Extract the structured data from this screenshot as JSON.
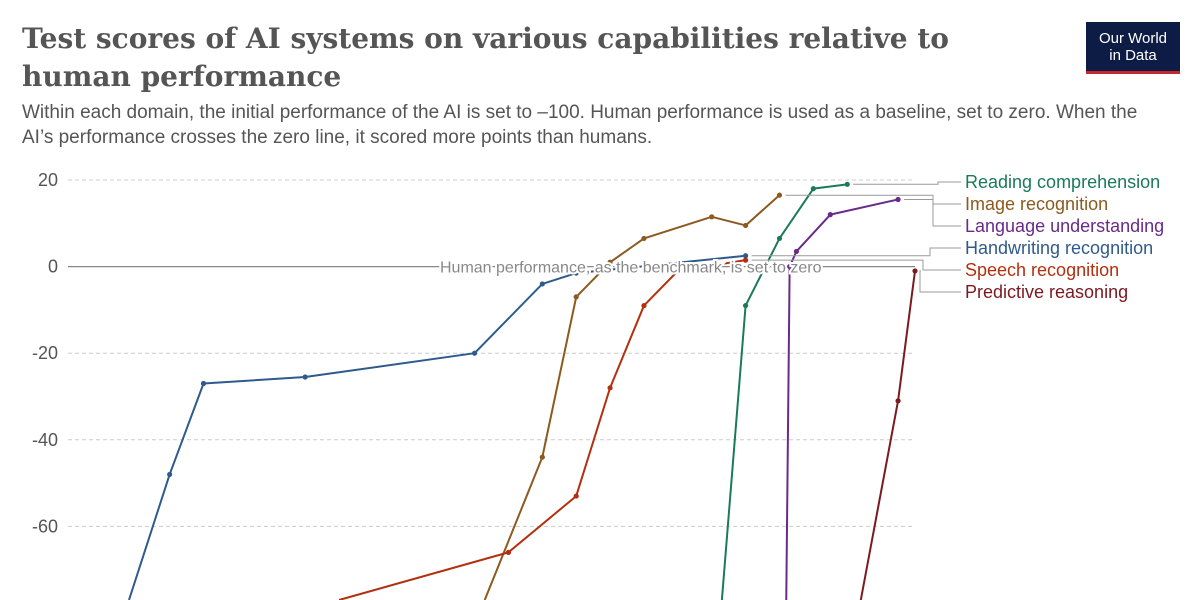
{
  "title": "Test scores of AI systems on various capabilities relative to human performance",
  "subtitle": "Within each domain, the initial performance of the AI is set to –100. Human performance is used as a baseline, set to zero. When the AI’s performance crosses the zero line, it scored more points than humans.",
  "logo": {
    "line1": "Our World",
    "line2": "in Data"
  },
  "colors": {
    "reading": "#1a7a5a",
    "image": "#8c5a1e",
    "language": "#6a2a8a",
    "handwriting": "#2f5a8c",
    "speech": "#b2300f",
    "predictive": "#7a1a20",
    "grid": "#cccccc",
    "text": "#555555"
  },
  "chart_data": {
    "type": "line",
    "title": "Test scores of AI systems on various capabilities relative to human performance",
    "xlabel": "",
    "ylabel": "",
    "x_unit": "year",
    "xlim": [
      1998,
      2023
    ],
    "ylim": [
      -77,
      20
    ],
    "yticks": [
      20,
      0,
      -20,
      -40,
      -60
    ],
    "ytick_labels": [
      "20",
      "0",
      "-20",
      "-40",
      "-60"
    ],
    "baseline_annotation": "Human performance, as the benchmark, is set to zero",
    "series": [
      {
        "name": "Reading comprehension",
        "color_key": "reading",
        "x": [
          2017.3,
          2018.0,
          2019.0,
          2020.0,
          2021.0
        ],
        "y": [
          -77,
          -9,
          6.5,
          18,
          19
        ]
      },
      {
        "name": "Image recognition",
        "color_key": "image",
        "x": [
          2010.3,
          2012.0,
          2013.0,
          2014.0,
          2015.0,
          2017.0,
          2018.0,
          2019.0
        ],
        "y": [
          -77,
          -44,
          -7,
          1,
          6.5,
          11.5,
          9.5,
          16.5
        ]
      },
      {
        "name": "Language understanding",
        "color_key": "language",
        "x": [
          2019.2,
          2019.3,
          2019.5,
          2020.5,
          2022.5
        ],
        "y": [
          -77,
          0,
          3.5,
          12,
          15.5
        ]
      },
      {
        "name": "Handwriting recognition",
        "color_key": "handwriting",
        "x": [
          1999.8,
          2001.0,
          2002.0,
          2005.0,
          2010.0,
          2012.0,
          2013.0,
          2018.0
        ],
        "y": [
          -77,
          -48,
          -27,
          -25.5,
          -20,
          -4,
          -1.5,
          2.5
        ]
      },
      {
        "name": "Speech recognition",
        "color_key": "speech",
        "x": [
          2006.0,
          2011.0,
          2013.0,
          2014.0,
          2015.0,
          2016.0,
          2018.0
        ],
        "y": [
          -77,
          -66,
          -53,
          -28,
          -9,
          -1,
          1.5
        ]
      },
      {
        "name": "Predictive reasoning",
        "color_key": "predictive",
        "x": [
          2021.4,
          2022.5,
          2023.0
        ],
        "y": [
          -77,
          -31,
          -1
        ]
      }
    ]
  }
}
